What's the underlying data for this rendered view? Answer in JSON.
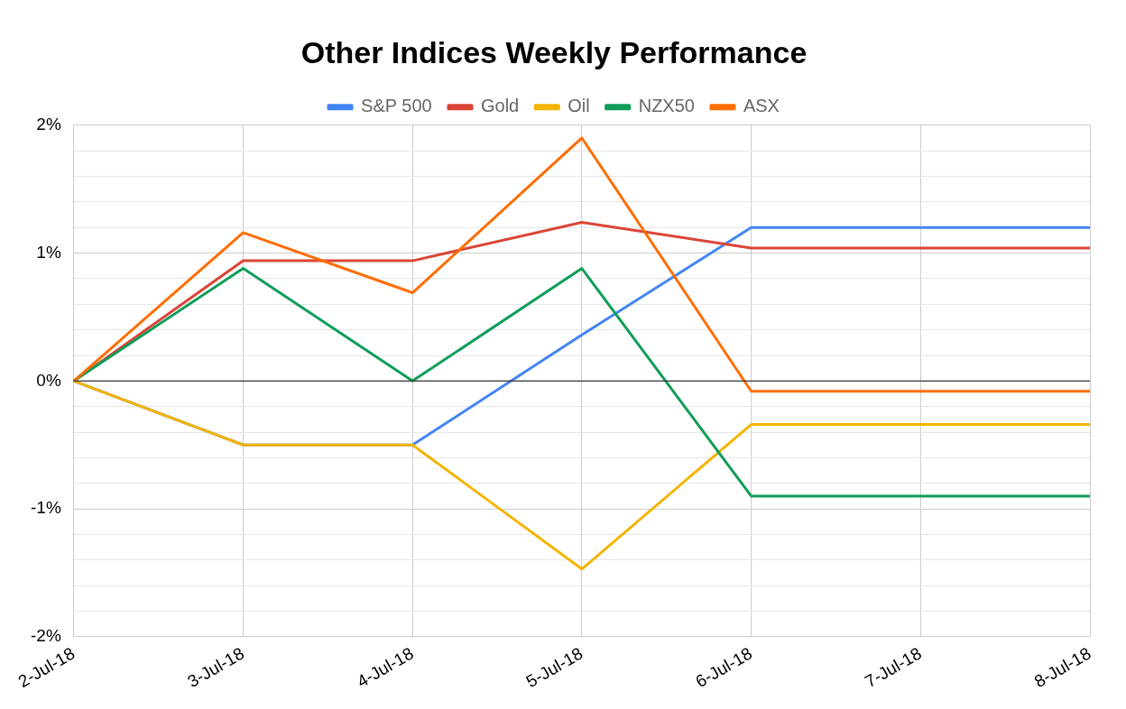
{
  "chart_data": {
    "type": "line",
    "title": "Other Indices Weekly Performance",
    "categories": [
      "2-Jul-18",
      "3-Jul-18",
      "4-Jul-18",
      "5-Jul-18",
      "6-Jul-18",
      "7-Jul-18",
      "8-Jul-18"
    ],
    "series": [
      {
        "name": "S&P 500",
        "color": "#4285f4",
        "values": [
          0,
          -0.5,
          -0.5,
          0.36,
          1.2,
          1.2,
          1.2
        ]
      },
      {
        "name": "Gold",
        "color": "#db4437",
        "values": [
          0,
          0.94,
          0.94,
          1.24,
          1.04,
          1.04,
          1.04
        ]
      },
      {
        "name": "Oil",
        "color": "#f4b400",
        "values": [
          0,
          -0.5,
          -0.5,
          -1.47,
          -0.34,
          -0.34,
          -0.34
        ]
      },
      {
        "name": "NZX50",
        "color": "#0f9d58",
        "values": [
          0,
          0.88,
          0,
          0.88,
          -0.9,
          -0.9,
          -0.9
        ]
      },
      {
        "name": "ASX",
        "color": "#ff6d01",
        "values": [
          0,
          1.16,
          0.69,
          1.9,
          -0.08,
          -0.08,
          -0.08
        ]
      }
    ],
    "ylim": [
      -2,
      2
    ],
    "yticks": [
      {
        "value": -2,
        "label": "-2%"
      },
      {
        "value": -1.8,
        "label": null
      },
      {
        "value": -1.6,
        "label": null
      },
      {
        "value": -1.4,
        "label": null
      },
      {
        "value": -1.2,
        "label": null
      },
      {
        "value": -1,
        "label": "-1%"
      },
      {
        "value": -0.8,
        "label": null
      },
      {
        "value": -0.6,
        "label": null
      },
      {
        "value": -0.4,
        "label": null
      },
      {
        "value": -0.2,
        "label": null
      },
      {
        "value": 0,
        "label": "0%"
      },
      {
        "value": 0.2,
        "label": null
      },
      {
        "value": 0.4,
        "label": null
      },
      {
        "value": 0.6,
        "label": null
      },
      {
        "value": 0.8,
        "label": null
      },
      {
        "value": 1,
        "label": "1%"
      },
      {
        "value": 1.2,
        "label": null
      },
      {
        "value": 1.4,
        "label": null
      },
      {
        "value": 1.6,
        "label": null
      },
      {
        "value": 1.8,
        "label": null
      },
      {
        "value": 2,
        "label": "2%"
      }
    ],
    "ref_lines": [
      {
        "axis": "y",
        "value": 0,
        "color": "#333333"
      }
    ],
    "grid": true,
    "legend": "top",
    "marker": "none",
    "line_style": "solid"
  }
}
